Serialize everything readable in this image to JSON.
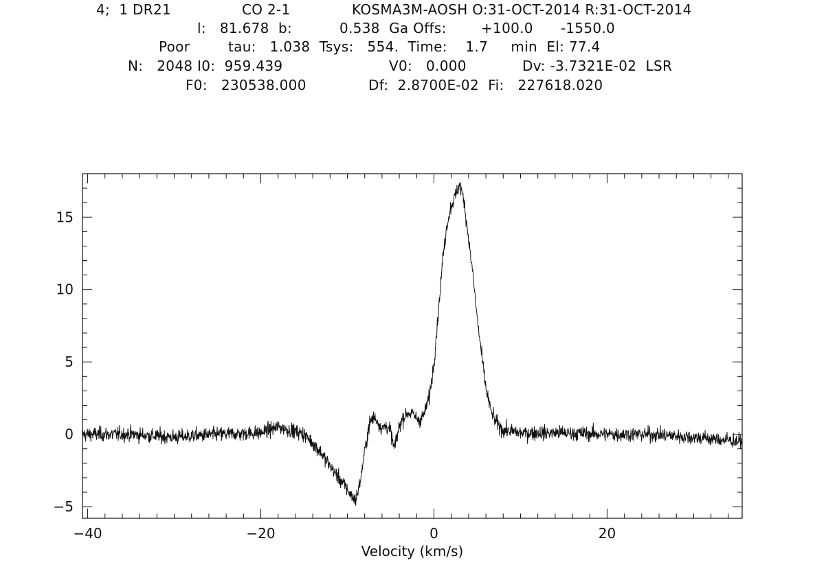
{
  "header": {
    "line1": {
      "scan": "4;  1 DR21",
      "line": "CO 2-1",
      "telescope": "KOSMA3M-AOSH O:31-OCT-2014 R:31-OCT-2014"
    },
    "line2": {
      "l": "l:   81.678  b:",
      "b": "0.538  Ga Offs:",
      "offs": "+100.0      -1550.0"
    },
    "line3": {
      "quality": "Poor",
      "tau": "tau:   1.038  Tsys:   554.  Time:    1.7     min  El: 77.4"
    },
    "line4": {
      "n": "N:   2048 I0:  959.439",
      "v0": "V0:   0.000",
      "dv": "Dv: -3.7321E-02  LSR"
    },
    "line5": {
      "f0": "F0:   230538.000",
      "df": "Df:  2.8700E-02  Fi:   227618.020"
    }
  },
  "chart_data": {
    "type": "line",
    "title": "",
    "xlabel": "Velocity (km/s)",
    "ylabel": "",
    "xlim": [
      -40.6,
      35.6
    ],
    "ylim": [
      -5.8,
      18.0
    ],
    "x_ticks": [
      -40,
      -20,
      0,
      20
    ],
    "y_ticks": [
      -5,
      0,
      5,
      10,
      15
    ],
    "x_tick_labels": [
      "-40",
      "-20",
      "0",
      "20"
    ],
    "y_tick_labels": [
      "-5",
      "0",
      "5",
      "10",
      "15"
    ],
    "grid": false,
    "noise_rms": 0.35,
    "series": [
      {
        "x": [
          -40.6,
          -35,
          -30,
          -25,
          -20,
          -18,
          -16,
          -15,
          -14,
          -13,
          -12,
          -11,
          -10,
          -9.5,
          -9.0,
          -8.5,
          -8.0,
          -7.5,
          -7.0,
          -6.5,
          -6.0,
          -5.5,
          -5.0,
          -4.6,
          -4.3,
          -4.0,
          -3.5,
          -3.0,
          -2.5,
          -2.0,
          -1.5,
          -1.0,
          -0.5,
          0.0,
          0.5,
          1.0,
          1.5,
          2.0,
          2.5,
          3.0,
          3.5,
          4.0,
          4.5,
          5.0,
          5.5,
          6.0,
          6.5,
          7.0,
          7.5,
          8.0,
          9.0,
          10,
          15,
          20,
          25,
          30,
          35.6
        ],
        "y": [
          0.0,
          0.0,
          -0.2,
          0.0,
          0.1,
          0.5,
          0.2,
          0.0,
          -0.6,
          -1.3,
          -2.2,
          -3.0,
          -3.8,
          -4.3,
          -4.5,
          -3.2,
          -1.2,
          0.6,
          1.2,
          0.9,
          0.4,
          0.6,
          0.2,
          -1.0,
          -0.3,
          0.6,
          1.2,
          1.5,
          1.4,
          1.1,
          1.0,
          1.6,
          2.7,
          5.0,
          8.4,
          12.0,
          14.5,
          15.8,
          16.5,
          17.3,
          16.0,
          13.5,
          11.0,
          8.0,
          5.5,
          3.2,
          1.8,
          1.0,
          0.6,
          0.3,
          0.2,
          0.1,
          0.1,
          0.0,
          0.0,
          -0.2,
          -0.5
        ]
      }
    ]
  },
  "colors": {
    "background": "#ffffff",
    "foreground": "#111111"
  }
}
